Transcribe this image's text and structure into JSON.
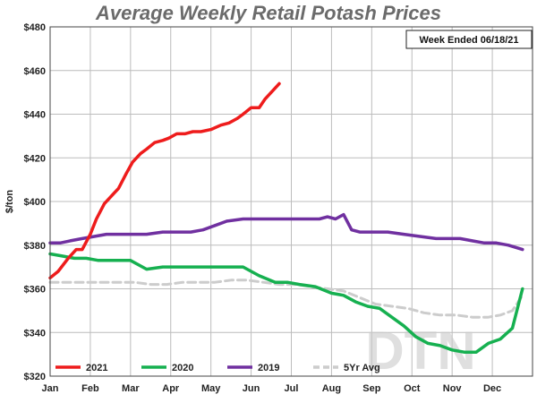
{
  "chart_data": {
    "type": "line",
    "title": "Average Weekly Retail Potash Prices",
    "note": "Week Ended 06/18/21",
    "ylabel": "$/ton",
    "xlabel": "",
    "ylim": [
      320,
      480
    ],
    "xlim": [
      0,
      12
    ],
    "y_ticks": [
      320,
      340,
      360,
      380,
      400,
      420,
      440,
      460,
      480
    ],
    "y_tick_labels": [
      "$320",
      "$340",
      "$360",
      "$380",
      "$400",
      "$420",
      "$440",
      "$460",
      "$480"
    ],
    "x_ticks": [
      0,
      1,
      2,
      3,
      4,
      5,
      6,
      7,
      8,
      9,
      10,
      11
    ],
    "x_tick_labels": [
      "Jan",
      "Feb",
      "Mar",
      "Apr",
      "May",
      "Jun",
      "Jul",
      "Aug",
      "Sep",
      "Oct",
      "Nov",
      "Dec"
    ],
    "grid": true,
    "legend_position": "bottom",
    "watermark": "DTN",
    "series": [
      {
        "name": "2021",
        "color": "#ee1c1c",
        "dash": false,
        "x": [
          0.0,
          0.2,
          0.45,
          0.65,
          0.8,
          1.0,
          1.15,
          1.35,
          1.55,
          1.7,
          1.9,
          2.05,
          2.25,
          2.4,
          2.6,
          2.8,
          2.95,
          3.15,
          3.35,
          3.55,
          3.75,
          4.0,
          4.25,
          4.45,
          4.65,
          4.8,
          5.0,
          5.2,
          5.35,
          5.55,
          5.7
        ],
        "values": [
          365,
          368,
          374,
          378,
          378,
          385,
          392,
          399,
          403,
          406,
          413,
          418,
          422,
          424,
          427,
          428,
          429,
          431,
          431,
          432,
          432,
          433,
          435,
          436,
          438,
          440,
          443,
          443,
          447,
          451,
          454
        ]
      },
      {
        "name": "2020",
        "color": "#16b050",
        "dash": false,
        "x": [
          0.0,
          0.3,
          0.6,
          0.9,
          1.2,
          1.5,
          1.75,
          2.0,
          2.4,
          2.8,
          3.2,
          3.6,
          4.0,
          4.4,
          4.8,
          5.2,
          5.6,
          5.9,
          6.2,
          6.6,
          7.0,
          7.3,
          7.6,
          7.9,
          8.2,
          8.5,
          8.8,
          9.1,
          9.4,
          9.7,
          10.0,
          10.3,
          10.6,
          10.9,
          11.2,
          11.5,
          11.75
        ],
        "values": [
          376,
          375,
          374,
          374,
          373,
          373,
          373,
          373,
          369,
          370,
          370,
          370,
          370,
          370,
          370,
          366,
          363,
          363,
          362,
          361,
          358,
          357,
          354,
          352,
          351,
          347,
          343,
          338,
          335,
          334,
          332,
          331,
          331,
          335,
          337,
          342,
          360
        ]
      },
      {
        "name": "2019",
        "color": "#7030a0",
        "dash": false,
        "x": [
          0.0,
          0.25,
          0.5,
          0.8,
          1.1,
          1.4,
          1.7,
          2.0,
          2.4,
          2.8,
          3.2,
          3.5,
          3.8,
          4.1,
          4.4,
          4.8,
          5.2,
          5.6,
          6.0,
          6.4,
          6.7,
          6.9,
          7.1,
          7.3,
          7.5,
          7.7,
          8.0,
          8.4,
          8.8,
          9.2,
          9.6,
          9.9,
          10.2,
          10.5,
          10.8,
          11.1,
          11.4,
          11.75
        ],
        "values": [
          381,
          381,
          382,
          383,
          384,
          385,
          385,
          385,
          385,
          386,
          386,
          386,
          387,
          389,
          391,
          392,
          392,
          392,
          392,
          392,
          392,
          393,
          392,
          394,
          387,
          386,
          386,
          386,
          385,
          384,
          383,
          383,
          383,
          382,
          381,
          381,
          380,
          378
        ]
      },
      {
        "name": "5Yr Avg",
        "color": "#cccccc",
        "dash": true,
        "x": [
          0.0,
          0.3,
          0.6,
          0.9,
          1.2,
          1.5,
          1.8,
          2.1,
          2.5,
          2.9,
          3.3,
          3.7,
          4.1,
          4.5,
          4.9,
          5.3,
          5.7,
          6.1,
          6.5,
          6.9,
          7.3,
          7.7,
          8.1,
          8.5,
          8.9,
          9.3,
          9.7,
          10.1,
          10.5,
          10.9,
          11.2,
          11.5,
          11.75
        ],
        "values": [
          363,
          363,
          363,
          363,
          363,
          363,
          363,
          363,
          362,
          362,
          363,
          363,
          363,
          364,
          364,
          363,
          362,
          362,
          361,
          360,
          359,
          356,
          353,
          352,
          351,
          349,
          348,
          348,
          347,
          347,
          348,
          350,
          357
        ]
      }
    ]
  }
}
